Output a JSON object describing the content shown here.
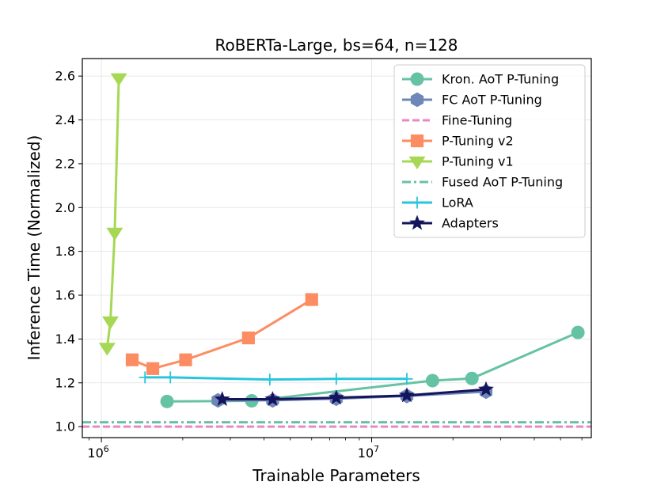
{
  "chart_data": {
    "type": "line",
    "title": "RoBERTa-Large, bs=64, n=128",
    "xlabel": "Trainable Parameters",
    "ylabel": "Inference Time (Normalized)",
    "xscale": "log",
    "xlim": [
      850000,
      65000000
    ],
    "ylim": [
      0.95,
      2.68
    ],
    "grid": true,
    "legend_position": "upper-right",
    "x_ticks": [
      {
        "value": 1000000,
        "base": "10",
        "exp": "6"
      },
      {
        "value": 10000000,
        "base": "10",
        "exp": "7"
      }
    ],
    "y_ticks": [
      "1.0",
      "1.2",
      "1.4",
      "1.6",
      "1.8",
      "2.0",
      "2.2",
      "2.4",
      "2.6"
    ],
    "series": [
      {
        "name": "Kron. AoT P-Tuning",
        "color": "#66c2a5",
        "marker": "circle",
        "style": "solid",
        "x": [
          1750000,
          3600000,
          16800000,
          23500000,
          58000000
        ],
        "y": [
          1.115,
          1.118,
          1.21,
          1.22,
          1.43
        ]
      },
      {
        "name": "FC AoT P-Tuning",
        "color": "#6f86b8",
        "marker": "hexagon",
        "style": "solid",
        "x": [
          2700000,
          4300000,
          7400000,
          13500000,
          26500000
        ],
        "y": [
          1.12,
          1.12,
          1.128,
          1.14,
          1.16
        ]
      },
      {
        "name": "Fine-Tuning",
        "color": "#e78ac3",
        "marker": "none",
        "style": "dashed",
        "hline": 1.0
      },
      {
        "name": "P-Tuning v2",
        "color": "#fc8d62",
        "marker": "square",
        "style": "solid",
        "x": [
          1300000,
          1550000,
          2050000,
          3500000,
          6000000
        ],
        "y": [
          1.305,
          1.265,
          1.305,
          1.405,
          1.58
        ]
      },
      {
        "name": "P-Tuning v1",
        "color": "#a6d854",
        "marker": "triangle-down",
        "style": "solid",
        "x": [
          1050000,
          1080000,
          1120000,
          1160000
        ],
        "y": [
          1.36,
          1.48,
          1.885,
          2.59
        ]
      },
      {
        "name": "Fused AoT P-Tuning",
        "color": "#66c2a5",
        "marker": "none",
        "style": "dashdot",
        "hline": 1.02
      },
      {
        "name": "LoRA",
        "color": "#27c6dc",
        "marker": "plus",
        "style": "solid",
        "x": [
          1450000,
          1800000,
          4200000,
          7400000,
          13500000
        ],
        "y": [
          1.225,
          1.225,
          1.215,
          1.218,
          1.218
        ]
      },
      {
        "name": "Adapters",
        "color": "#14145c",
        "marker": "star",
        "style": "solid",
        "x": [
          2800000,
          4300000,
          7400000,
          13500000,
          26500000
        ],
        "y": [
          1.125,
          1.125,
          1.132,
          1.142,
          1.17
        ]
      }
    ]
  }
}
